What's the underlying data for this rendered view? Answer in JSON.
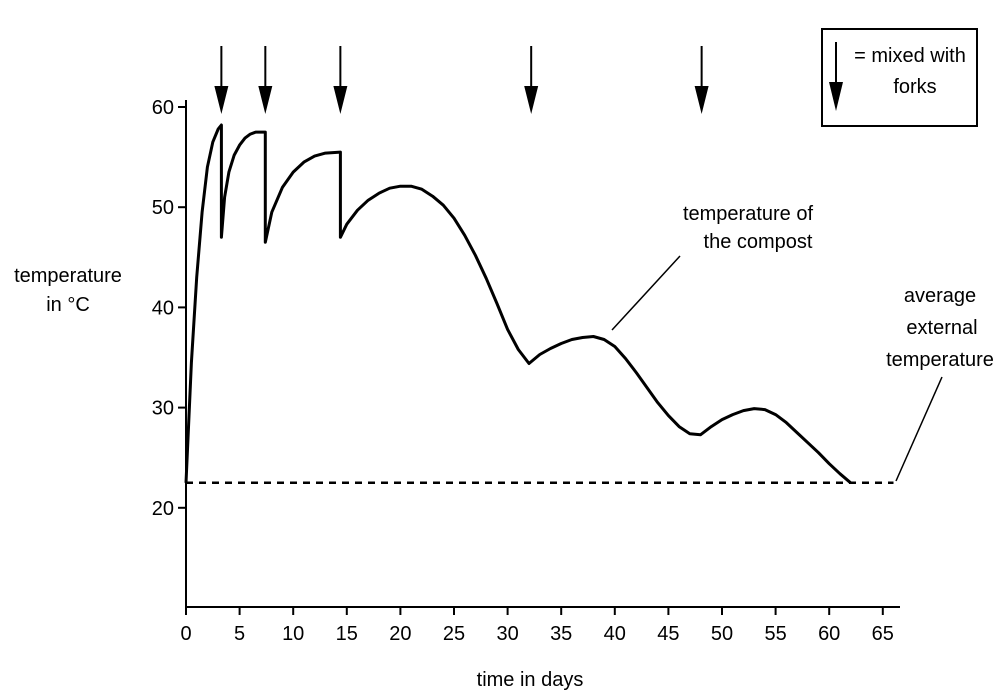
{
  "chart_data": {
    "type": "line",
    "xlabel": "time in days",
    "ylabel": [
      "temperature",
      "in °C"
    ],
    "xlim": [
      0,
      67
    ],
    "ylim": [
      10,
      60
    ],
    "x_ticks": [
      0,
      5,
      10,
      15,
      20,
      25,
      30,
      35,
      40,
      45,
      50,
      55,
      60,
      65
    ],
    "y_ticks": [
      20,
      30,
      40,
      50,
      60
    ],
    "grid": false,
    "series": [
      {
        "name": "temperature of the compost",
        "style": "solid",
        "points": [
          [
            0,
            22.5
          ],
          [
            0.5,
            34.5
          ],
          [
            1,
            43
          ],
          [
            1.5,
            49.5
          ],
          [
            2,
            54
          ],
          [
            2.5,
            56.5
          ],
          [
            3,
            57.8
          ],
          [
            3.3,
            58.2
          ],
          [
            3.3,
            47
          ],
          [
            3.6,
            51
          ],
          [
            4,
            53.5
          ],
          [
            4.5,
            55.2
          ],
          [
            5,
            56.2
          ],
          [
            5.5,
            56.9
          ],
          [
            6,
            57.3
          ],
          [
            6.5,
            57.5
          ],
          [
            7.4,
            57.5
          ],
          [
            7.4,
            46.5
          ],
          [
            8,
            49.5
          ],
          [
            9,
            52
          ],
          [
            10,
            53.5
          ],
          [
            11,
            54.5
          ],
          [
            12,
            55.1
          ],
          [
            13,
            55.4
          ],
          [
            14.4,
            55.5
          ],
          [
            14.4,
            47
          ],
          [
            15,
            48.3
          ],
          [
            16,
            49.7
          ],
          [
            17,
            50.7
          ],
          [
            18,
            51.4
          ],
          [
            19,
            51.9
          ],
          [
            20,
            52.1
          ],
          [
            21,
            52.1
          ],
          [
            22,
            51.8
          ],
          [
            23,
            51.1
          ],
          [
            24,
            50.2
          ],
          [
            25,
            48.9
          ],
          [
            26,
            47.2
          ],
          [
            27,
            45.2
          ],
          [
            28,
            42.9
          ],
          [
            29,
            40.4
          ],
          [
            30,
            37.8
          ],
          [
            31,
            35.8
          ],
          [
            32,
            34.4
          ],
          [
            33,
            35.3
          ],
          [
            34,
            35.9
          ],
          [
            35,
            36.4
          ],
          [
            36,
            36.8
          ],
          [
            37,
            37
          ],
          [
            38,
            37.1
          ],
          [
            39,
            36.8
          ],
          [
            40,
            36.1
          ],
          [
            41,
            34.9
          ],
          [
            42,
            33.5
          ],
          [
            43,
            32
          ],
          [
            44,
            30.5
          ],
          [
            45,
            29.2
          ],
          [
            46,
            28.1
          ],
          [
            47,
            27.4
          ],
          [
            48,
            27.3
          ],
          [
            49,
            28.1
          ],
          [
            50,
            28.8
          ],
          [
            51,
            29.3
          ],
          [
            52,
            29.7
          ],
          [
            53,
            29.9
          ],
          [
            54,
            29.8
          ],
          [
            55,
            29.3
          ],
          [
            56,
            28.5
          ],
          [
            57,
            27.5
          ],
          [
            58,
            26.5
          ],
          [
            59,
            25.5
          ],
          [
            60,
            24.4
          ],
          [
            61,
            23.4
          ],
          [
            62,
            22.5
          ]
        ]
      },
      {
        "name": "average external temperature",
        "style": "dashed",
        "points": [
          [
            0,
            22.5
          ],
          [
            66,
            22.5
          ]
        ]
      }
    ],
    "mixing_events": [
      3.3,
      7.4,
      14.4,
      32.2,
      48.1
    ],
    "legend": {
      "line1": "= mixed with",
      "line2": "forks"
    },
    "annotations": {
      "compost": [
        "temperature of",
        "the compost"
      ],
      "external": [
        "average",
        "external",
        "temperature"
      ]
    }
  }
}
